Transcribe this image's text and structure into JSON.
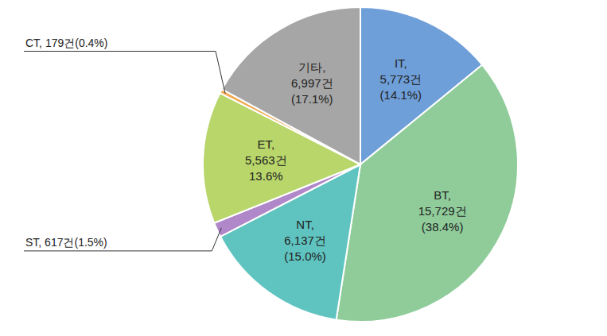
{
  "chart_data": {
    "type": "pie",
    "categories": [
      "IT",
      "BT",
      "NT",
      "ST",
      "ET",
      "CT",
      "기타"
    ],
    "values": [
      5773,
      15729,
      6137,
      617,
      5563,
      179,
      6997
    ],
    "value_labels": [
      "IT,\n5,773건\n(14.1%)",
      "BT,\n15,729건\n(38.4%)",
      "NT,\n6,137건\n(15.0%)",
      "ST, 617건(1.5%)",
      "ET,\n5,563건\n13.6%",
      "CT, 179건(0.4%)",
      "기타,\n6,997건\n(17.1%)"
    ],
    "colors": [
      "#6f9fd8",
      "#8fcc9a",
      "#5fc4c0",
      "#b087c8",
      "#b8d66a",
      "#f2a950",
      "#a6a6a6"
    ]
  }
}
